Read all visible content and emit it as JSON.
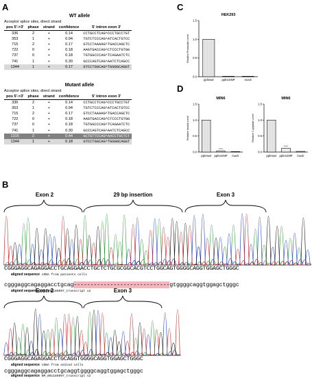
{
  "panels": {
    "A": "A",
    "B": "B",
    "C": "C",
    "D": "D"
  },
  "panelA": {
    "wt": {
      "title": "WT allele",
      "subtitle": "Acceptor splice sites, direct strand",
      "headers": [
        "pos 5'->3'",
        "phase",
        "strand",
        "confidence",
        "5'  intron  exon  3'"
      ],
      "rows": [
        [
          "336",
          "2",
          "+",
          "0.14",
          "CCTGCCTCAG^CCCTGCCTGT"
        ],
        [
          "353",
          "1",
          "+",
          "0.94",
          "TGTCTCCCAG^ATCACTGTCC"
        ],
        [
          "715",
          "2",
          "+",
          "0.17",
          "GTCCTAAAAG^TGACCAGCTC"
        ],
        [
          "722",
          "0",
          "+",
          "0.18",
          "AAGTGACCAG^CTCCCTGTGG"
        ],
        [
          "737",
          "0",
          "+",
          "0.18",
          "TGTGGCCCAG^TCAGAATCTC"
        ],
        [
          "741",
          "1",
          "+",
          "0.30",
          "GCCCAGTCAG^AATCTCAGCC"
        ],
        [
          "1344",
          "1",
          "+",
          "0.17",
          "GTCCTGGCAG^TGGGGCAGGT"
        ]
      ]
    },
    "mut": {
      "title": "Mutant allele",
      "subtitle": "Acceptor splice sites, direct strand",
      "headers": [
        "pos 5'->3'",
        "phase",
        "strand",
        "confidence",
        "5'  intron  exon  3'"
      ],
      "rows": [
        [
          "336",
          "2",
          "+",
          "0.14",
          "CCTGCCTCAG^CCCTGCCTGT"
        ],
        [
          "353",
          "1",
          "+",
          "0.94",
          "TGTCTCCCAG^ATCACTGTCC"
        ],
        [
          "715",
          "2",
          "+",
          "0.17",
          "GTCCTAAAAG^TGACCAGCTC"
        ],
        [
          "722",
          "0",
          "+",
          "0.18",
          "AAGTGACCAG^CTCCCTGTGG"
        ],
        [
          "737",
          "0",
          "+",
          "0.18",
          "TGTGGCCCAG^TCAGAATCTC"
        ],
        [
          "741",
          "1",
          "+",
          "0.30",
          "GCCCAGTCAG^AATCTCAGCC"
        ],
        [
          "1315",
          "2",
          "+",
          "0.44",
          "GCTGTTCCAG^AACCTGCTCT"
        ],
        [
          "1344",
          "1",
          "+",
          "0.18",
          "GTCCTGGCAG^TGGGGCAGGT"
        ]
      ]
    }
  },
  "chart_data": [
    {
      "type": "bar",
      "title": "HEK293",
      "ylabel": "Relative Proinsulin Level",
      "categories": [
        "",
        "",
        ""
      ],
      "values": [
        1.0,
        0.0,
        0.0
      ],
      "ylim": [
        0,
        1.5
      ],
      "significance": [
        "",
        "",
        ""
      ]
    },
    {
      "type": "bar",
      "title": "MIN6",
      "ylabel": "Relative Insulin Level",
      "categories": [
        "pplnswt",
        "pplnsSNP",
        "mock"
      ],
      "values": [
        1.0,
        0.03,
        0.01
      ],
      "ylim": [
        0,
        1.5
      ],
      "significance": [
        "",
        "****",
        ""
      ]
    },
    {
      "type": "bar",
      "title": "MIN6",
      "ylabel": "Relative C-peptide Level",
      "categories": [
        "pplnswt",
        "pplnsSNP",
        "mock"
      ],
      "values": [
        1.0,
        0.12,
        0.02
      ],
      "ylim": [
        0,
        1.5
      ],
      "significance": [
        "",
        "****",
        ""
      ]
    }
  ],
  "panelC": {
    "xlabels": [
      "pplnswt",
      "pplnsSNP",
      "mock"
    ]
  },
  "panelB": {
    "top": {
      "exon2": "Exon 2",
      "insertion": "29 bp insertion",
      "exon3": "Exon 3",
      "sequence": "CGGGAGGCAGAGGACCTGCAGGAACCTGCTCTGCGCGGCACGTCCTGGCAGTGGGGCAGGTGGAGCTGGGC",
      "cap_bold": "aligned sequence",
      "cap_text": "cDNA from patients cells",
      "ref_left": "cgggaggcagaggacctgcag",
      "ref_gap": "-----------------------------",
      "ref_right": "gtggggcaggtggagctgggc",
      "ref_cap_bold": "aligned sequence",
      "ref_cap_text": "NM_001185097_transcript v2"
    },
    "bottom": {
      "exon2": "Exon 2",
      "exon3": "Exon 3",
      "sequence": "CGGGAGGCAGAGGACCTGCAGGTGGGGCAGGTGGAGCTGGGC",
      "cap_bold": "aligned sequence",
      "cap_text": "cDNA from edited cells",
      "ref": "cgggaggcagaggacctgcaggtggggcaggtggagctgggc",
      "ref_cap_bold": "aligned sequence",
      "ref_cap_text": "NM_001185097_transcript v2"
    }
  }
}
